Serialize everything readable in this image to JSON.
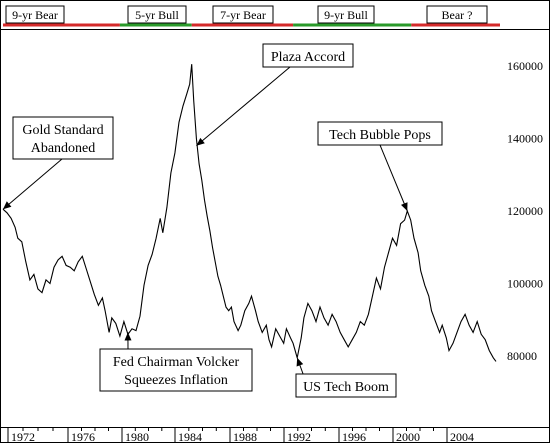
{
  "chart_data": {
    "type": "line",
    "x_axis": {
      "ticks": [
        "1972",
        "1976",
        "1980",
        "1984",
        "1988",
        "1992",
        "1996",
        "2000",
        "2004"
      ],
      "range": [
        1971,
        2008
      ]
    },
    "y_axis": {
      "ticks": [
        "80000",
        "100000",
        "120000",
        "140000",
        "160000"
      ],
      "range": [
        65000,
        172000
      ],
      "position": "right"
    },
    "grid": false,
    "series": [
      {
        "color": "#000000",
        "points": [
          [
            1971.0,
            120500
          ],
          [
            1971.3,
            119500
          ],
          [
            1971.6,
            118000
          ],
          [
            1971.9,
            115500
          ],
          [
            1972.1,
            112500
          ],
          [
            1972.4,
            111500
          ],
          [
            1972.7,
            106000
          ],
          [
            1973.0,
            101000
          ],
          [
            1973.3,
            102500
          ],
          [
            1973.6,
            98500
          ],
          [
            1973.9,
            97500
          ],
          [
            1974.2,
            101000
          ],
          [
            1974.5,
            100000
          ],
          [
            1974.8,
            104500
          ],
          [
            1975.1,
            106500
          ],
          [
            1975.4,
            107500
          ],
          [
            1975.7,
            105000
          ],
          [
            1976.0,
            104500
          ],
          [
            1976.3,
            103500
          ],
          [
            1976.6,
            106000
          ],
          [
            1976.9,
            107500
          ],
          [
            1977.2,
            104000
          ],
          [
            1977.5,
            100500
          ],
          [
            1977.8,
            97000
          ],
          [
            1978.1,
            94000
          ],
          [
            1978.4,
            96000
          ],
          [
            1978.6,
            92500
          ],
          [
            1978.9,
            86500
          ],
          [
            1979.1,
            90500
          ],
          [
            1979.4,
            89000
          ],
          [
            1979.7,
            85500
          ],
          [
            1980.0,
            89500
          ],
          [
            1980.3,
            86000
          ],
          [
            1980.6,
            87500
          ],
          [
            1980.9,
            87000
          ],
          [
            1981.2,
            91000
          ],
          [
            1981.5,
            99500
          ],
          [
            1981.8,
            105000
          ],
          [
            1982.1,
            108000
          ],
          [
            1982.4,
            112500
          ],
          [
            1982.7,
            118000
          ],
          [
            1982.9,
            114000
          ],
          [
            1983.2,
            121000
          ],
          [
            1983.5,
            130500
          ],
          [
            1983.8,
            136000
          ],
          [
            1984.1,
            144500
          ],
          [
            1984.4,
            149000
          ],
          [
            1984.7,
            152500
          ],
          [
            1984.9,
            155000
          ],
          [
            1985.05,
            160500
          ],
          [
            1985.2,
            150500
          ],
          [
            1985.4,
            140000
          ],
          [
            1985.6,
            133000
          ],
          [
            1985.8,
            128500
          ],
          [
            1986.0,
            123000
          ],
          [
            1986.2,
            118500
          ],
          [
            1986.4,
            114500
          ],
          [
            1986.6,
            110000
          ],
          [
            1986.8,
            106000
          ],
          [
            1987.0,
            102000
          ],
          [
            1987.2,
            99500
          ],
          [
            1987.4,
            96500
          ],
          [
            1987.6,
            93500
          ],
          [
            1987.8,
            92500
          ],
          [
            1988.0,
            93500
          ],
          [
            1988.2,
            89500
          ],
          [
            1988.5,
            87000
          ],
          [
            1988.7,
            88500
          ],
          [
            1989.0,
            92500
          ],
          [
            1989.3,
            94500
          ],
          [
            1989.5,
            96500
          ],
          [
            1989.8,
            92500
          ],
          [
            1990.0,
            89500
          ],
          [
            1990.3,
            86500
          ],
          [
            1990.6,
            88500
          ],
          [
            1990.8,
            84500
          ],
          [
            1991.0,
            82500
          ],
          [
            1991.3,
            87500
          ],
          [
            1991.6,
            85500
          ],
          [
            1991.9,
            83500
          ],
          [
            1992.1,
            87500
          ],
          [
            1992.4,
            85000
          ],
          [
            1992.6,
            83500
          ],
          [
            1992.9,
            79500
          ],
          [
            1993.2,
            85000
          ],
          [
            1993.4,
            90500
          ],
          [
            1993.7,
            94500
          ],
          [
            1994.0,
            92500
          ],
          [
            1994.3,
            89500
          ],
          [
            1994.6,
            93500
          ],
          [
            1994.9,
            90500
          ],
          [
            1995.2,
            88500
          ],
          [
            1995.5,
            91500
          ],
          [
            1995.8,
            89500
          ],
          [
            1996.1,
            86500
          ],
          [
            1996.4,
            84500
          ],
          [
            1996.7,
            82500
          ],
          [
            1997.0,
            84500
          ],
          [
            1997.3,
            86500
          ],
          [
            1997.6,
            89500
          ],
          [
            1997.9,
            88500
          ],
          [
            1998.2,
            91500
          ],
          [
            1998.5,
            96500
          ],
          [
            1998.8,
            101500
          ],
          [
            1999.1,
            98500
          ],
          [
            1999.4,
            104500
          ],
          [
            1999.7,
            108500
          ],
          [
            2000.0,
            112500
          ],
          [
            2000.3,
            110500
          ],
          [
            2000.6,
            116500
          ],
          [
            2000.9,
            117500
          ],
          [
            2001.1,
            120000
          ],
          [
            2001.35,
            117500
          ],
          [
            2001.6,
            112500
          ],
          [
            2001.9,
            108500
          ],
          [
            2002.1,
            103500
          ],
          [
            2002.4,
            99500
          ],
          [
            2002.7,
            96500
          ],
          [
            2002.9,
            92500
          ],
          [
            2003.2,
            89500
          ],
          [
            2003.5,
            86500
          ],
          [
            2003.7,
            88500
          ],
          [
            2004.0,
            85000
          ],
          [
            2004.2,
            81500
          ],
          [
            2004.5,
            83500
          ],
          [
            2004.8,
            86500
          ],
          [
            2005.1,
            89500
          ],
          [
            2005.4,
            91500
          ],
          [
            2005.7,
            88500
          ],
          [
            2006.0,
            86500
          ],
          [
            2006.3,
            89500
          ],
          [
            2006.6,
            86000
          ],
          [
            2006.9,
            84500
          ],
          [
            2007.2,
            81500
          ],
          [
            2007.5,
            79500
          ],
          [
            2007.7,
            78500
          ]
        ]
      }
    ],
    "eras": [
      {
        "label": "9-yr Bear",
        "color": "#d42a2a",
        "start": 1971.0,
        "end": 1979.7
      },
      {
        "label": "5-yr Bull",
        "color": "#2a9a2a",
        "start": 1979.7,
        "end": 1985.05
      },
      {
        "label": "7-yr Bear",
        "color": "#d42a2a",
        "start": 1985.05,
        "end": 1992.6
      },
      {
        "label": "9-yr Bull",
        "color": "#2a9a2a",
        "start": 1992.6,
        "end": 2001.4
      },
      {
        "label": "Bear ?",
        "color": "#d42a2a",
        "start": 2001.4,
        "end": 2008.4
      }
    ],
    "annotations": [
      {
        "id": "gold",
        "lines": [
          "Gold Standard",
          "Abandoned"
        ],
        "x": 1971.0,
        "y": 120500,
        "placement": "above-left"
      },
      {
        "id": "plaza",
        "lines": [
          "Plaza Accord"
        ],
        "x": 1985.4,
        "y": 138000,
        "placement": "above-right"
      },
      {
        "id": "volcker",
        "lines": [
          "Fed Chairman Volcker",
          "Squeezes Inflation"
        ],
        "x": 1980.3,
        "y": 86500,
        "placement": "below"
      },
      {
        "id": "boom",
        "lines": [
          "US Tech Boom"
        ],
        "x": 1992.9,
        "y": 79500,
        "placement": "below-right"
      },
      {
        "id": "bubble",
        "lines": [
          "Tech Bubble Pops"
        ],
        "x": 2001.1,
        "y": 120000,
        "placement": "above"
      }
    ]
  }
}
